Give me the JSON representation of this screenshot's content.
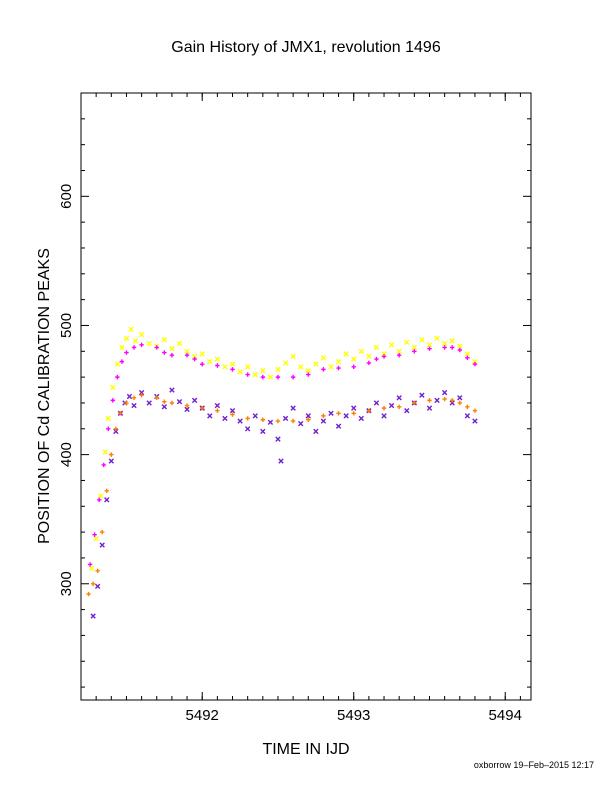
{
  "chart_data": {
    "type": "scatter",
    "title": "Gain History of JMX1, revolution 1496",
    "xlabel": "TIME IN IJD",
    "ylabel": "POSITION OF Cd CALIBRATION PEAKS",
    "xlim": [
      5491.2,
      5494.17
    ],
    "ylim": [
      210,
      680
    ],
    "xticks": [
      5492,
      5493,
      5494
    ],
    "yticks": [
      300,
      400,
      500,
      600
    ],
    "series": [
      {
        "marker": "x",
        "color": "#ffff00",
        "points": [
          [
            5491.27,
            312
          ],
          [
            5491.3,
            335
          ],
          [
            5491.33,
            368
          ],
          [
            5491.36,
            402
          ],
          [
            5491.38,
            428
          ],
          [
            5491.41,
            452
          ],
          [
            5491.44,
            470
          ],
          [
            5491.47,
            483
          ],
          [
            5491.5,
            490
          ],
          [
            5491.53,
            497
          ],
          [
            5491.56,
            488
          ],
          [
            5491.6,
            493
          ],
          [
            5491.65,
            486
          ],
          [
            5491.7,
            484
          ],
          [
            5491.75,
            489
          ],
          [
            5491.8,
            482
          ],
          [
            5491.85,
            486
          ],
          [
            5491.9,
            480
          ],
          [
            5491.95,
            476
          ],
          [
            5492.0,
            478
          ],
          [
            5492.05,
            472
          ],
          [
            5492.1,
            474
          ],
          [
            5492.15,
            468
          ],
          [
            5492.2,
            470
          ],
          [
            5492.25,
            464
          ],
          [
            5492.3,
            468
          ],
          [
            5492.35,
            462
          ],
          [
            5492.4,
            465
          ],
          [
            5492.45,
            460
          ],
          [
            5492.5,
            466
          ],
          [
            5492.55,
            471
          ],
          [
            5492.6,
            476
          ],
          [
            5492.65,
            468
          ],
          [
            5492.7,
            465
          ],
          [
            5492.75,
            470
          ],
          [
            5492.8,
            475
          ],
          [
            5492.85,
            468
          ],
          [
            5492.9,
            472
          ],
          [
            5492.95,
            478
          ],
          [
            5493.0,
            474
          ],
          [
            5493.05,
            480
          ],
          [
            5493.1,
            476
          ],
          [
            5493.15,
            483
          ],
          [
            5493.2,
            478
          ],
          [
            5493.25,
            485
          ],
          [
            5493.3,
            480
          ],
          [
            5493.35,
            487
          ],
          [
            5493.4,
            483
          ],
          [
            5493.45,
            489
          ],
          [
            5493.5,
            485
          ],
          [
            5493.55,
            490
          ],
          [
            5493.6,
            486
          ],
          [
            5493.65,
            488
          ],
          [
            5493.7,
            484
          ],
          [
            5493.75,
            478
          ],
          [
            5493.8,
            472
          ]
        ]
      },
      {
        "marker": "x",
        "color": "#7020d0",
        "points": [
          [
            5491.28,
            275
          ],
          [
            5491.31,
            298
          ],
          [
            5491.34,
            330
          ],
          [
            5491.37,
            365
          ],
          [
            5491.4,
            395
          ],
          [
            5491.43,
            418
          ],
          [
            5491.46,
            432
          ],
          [
            5491.49,
            440
          ],
          [
            5491.52,
            445
          ],
          [
            5491.55,
            438
          ],
          [
            5491.6,
            448
          ],
          [
            5491.65,
            440
          ],
          [
            5491.7,
            445
          ],
          [
            5491.75,
            437
          ],
          [
            5491.8,
            450
          ],
          [
            5491.85,
            441
          ],
          [
            5491.9,
            435
          ],
          [
            5491.95,
            442
          ],
          [
            5492.0,
            436
          ],
          [
            5492.05,
            430
          ],
          [
            5492.1,
            438
          ],
          [
            5492.15,
            428
          ],
          [
            5492.2,
            434
          ],
          [
            5492.25,
            426
          ],
          [
            5492.3,
            420
          ],
          [
            5492.35,
            430
          ],
          [
            5492.4,
            418
          ],
          [
            5492.45,
            425
          ],
          [
            5492.5,
            412
          ],
          [
            5492.52,
            395
          ],
          [
            5492.55,
            428
          ],
          [
            5492.6,
            436
          ],
          [
            5492.65,
            424
          ],
          [
            5492.7,
            430
          ],
          [
            5492.75,
            418
          ],
          [
            5492.8,
            426
          ],
          [
            5492.85,
            432
          ],
          [
            5492.9,
            422
          ],
          [
            5492.95,
            430
          ],
          [
            5493.0,
            436
          ],
          [
            5493.05,
            428
          ],
          [
            5493.1,
            434
          ],
          [
            5493.15,
            440
          ],
          [
            5493.2,
            430
          ],
          [
            5493.25,
            438
          ],
          [
            5493.3,
            444
          ],
          [
            5493.35,
            434
          ],
          [
            5493.4,
            440
          ],
          [
            5493.45,
            446
          ],
          [
            5493.5,
            436
          ],
          [
            5493.55,
            442
          ],
          [
            5493.6,
            448
          ],
          [
            5493.65,
            440
          ],
          [
            5493.7,
            444
          ],
          [
            5493.75,
            430
          ],
          [
            5493.8,
            426
          ]
        ]
      },
      {
        "marker": "+",
        "color": "#ff00ff",
        "points": [
          [
            5491.26,
            315
          ],
          [
            5491.29,
            338
          ],
          [
            5491.32,
            365
          ],
          [
            5491.35,
            392
          ],
          [
            5491.38,
            420
          ],
          [
            5491.41,
            442
          ],
          [
            5491.44,
            460
          ],
          [
            5491.47,
            472
          ],
          [
            5491.5,
            479
          ],
          [
            5491.55,
            483
          ],
          [
            5491.6,
            485
          ],
          [
            5491.7,
            483
          ],
          [
            5491.75,
            479
          ],
          [
            5491.8,
            477
          ],
          [
            5491.9,
            477
          ],
          [
            5491.95,
            474
          ],
          [
            5492.0,
            470
          ],
          [
            5492.1,
            469
          ],
          [
            5492.2,
            466
          ],
          [
            5492.3,
            462
          ],
          [
            5492.4,
            460
          ],
          [
            5492.5,
            460
          ],
          [
            5492.6,
            460
          ],
          [
            5492.7,
            462
          ],
          [
            5492.8,
            466
          ],
          [
            5492.9,
            467
          ],
          [
            5493.0,
            468
          ],
          [
            5493.1,
            471
          ],
          [
            5493.15,
            474
          ],
          [
            5493.2,
            476
          ],
          [
            5493.3,
            477
          ],
          [
            5493.4,
            480
          ],
          [
            5493.5,
            482
          ],
          [
            5493.6,
            483
          ],
          [
            5493.65,
            483
          ],
          [
            5493.7,
            481
          ],
          [
            5493.75,
            475
          ],
          [
            5493.8,
            470
          ]
        ]
      },
      {
        "marker": "+",
        "color": "#ff8000",
        "points": [
          [
            5491.25,
            292
          ],
          [
            5491.28,
            300
          ],
          [
            5491.31,
            310
          ],
          [
            5491.34,
            340
          ],
          [
            5491.37,
            372
          ],
          [
            5491.4,
            400
          ],
          [
            5491.43,
            420
          ],
          [
            5491.46,
            432
          ],
          [
            5491.5,
            440
          ],
          [
            5491.55,
            444
          ],
          [
            5491.6,
            446
          ],
          [
            5491.7,
            444
          ],
          [
            5491.75,
            441
          ],
          [
            5491.8,
            440
          ],
          [
            5491.9,
            438
          ],
          [
            5492.0,
            436
          ],
          [
            5492.1,
            434
          ],
          [
            5492.2,
            431
          ],
          [
            5492.3,
            428
          ],
          [
            5492.4,
            427
          ],
          [
            5492.5,
            426
          ],
          [
            5492.6,
            426
          ],
          [
            5492.7,
            427
          ],
          [
            5492.8,
            430
          ],
          [
            5492.9,
            432
          ],
          [
            5493.0,
            432
          ],
          [
            5493.1,
            434
          ],
          [
            5493.2,
            436
          ],
          [
            5493.3,
            437
          ],
          [
            5493.4,
            440
          ],
          [
            5493.5,
            442
          ],
          [
            5493.6,
            443
          ],
          [
            5493.65,
            442
          ],
          [
            5493.7,
            440
          ],
          [
            5493.75,
            437
          ],
          [
            5493.8,
            434
          ]
        ]
      }
    ]
  },
  "footer": "oxborrow 19–Feb–2015 12:17"
}
